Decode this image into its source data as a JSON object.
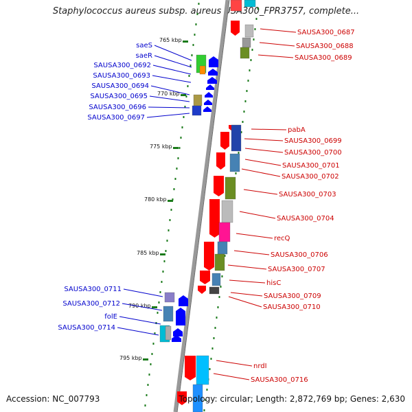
{
  "title": "Staphylococcus aureus subsp. aureus USA300_FPR3757, complete...",
  "footer": {
    "accession": "Accession: NC_007793",
    "topology": "Topology: circular; Length: 2,872,769 bp; Genes: 2,630"
  },
  "colors": {
    "forward_label": "#cc0000",
    "reverse_label": "#0000cc",
    "forward_arrow": "#ff0000",
    "reverse_arrow": "#0000ff",
    "backbone": "#999999",
    "tick": "#1a7a1a"
  },
  "scale_labels": [
    "765 kbp",
    "770 kbp",
    "775 kbp",
    "780 kbp",
    "785 kbp",
    "790 kbp",
    "795 kbp"
  ],
  "reverse_genes": [
    "saeS",
    "saeR",
    "SAUSA300_0692",
    "SAUSA300_0693",
    "SAUSA300_0694",
    "SAUSA300_0695",
    "SAUSA300_0696",
    "SAUSA300_0697",
    "SAUSA300_0711",
    "SAUSA300_0712",
    "folE",
    "SAUSA300_0714"
  ],
  "forward_genes": [
    "SAUSA300_0687",
    "SAUSA300_0688",
    "SAUSA300_0689",
    "pabA",
    "SAUSA300_0699",
    "SAUSA300_0700",
    "SAUSA300_0701",
    "SAUSA300_0702",
    "SAUSA300_0703",
    "SAUSA300_0704",
    "recQ",
    "SAUSA300_0706",
    "SAUSA300_0707",
    "hisC",
    "SAUSA300_0709",
    "SAUSA300_0710",
    "nrdI",
    "SAUSA300_0716"
  ]
}
